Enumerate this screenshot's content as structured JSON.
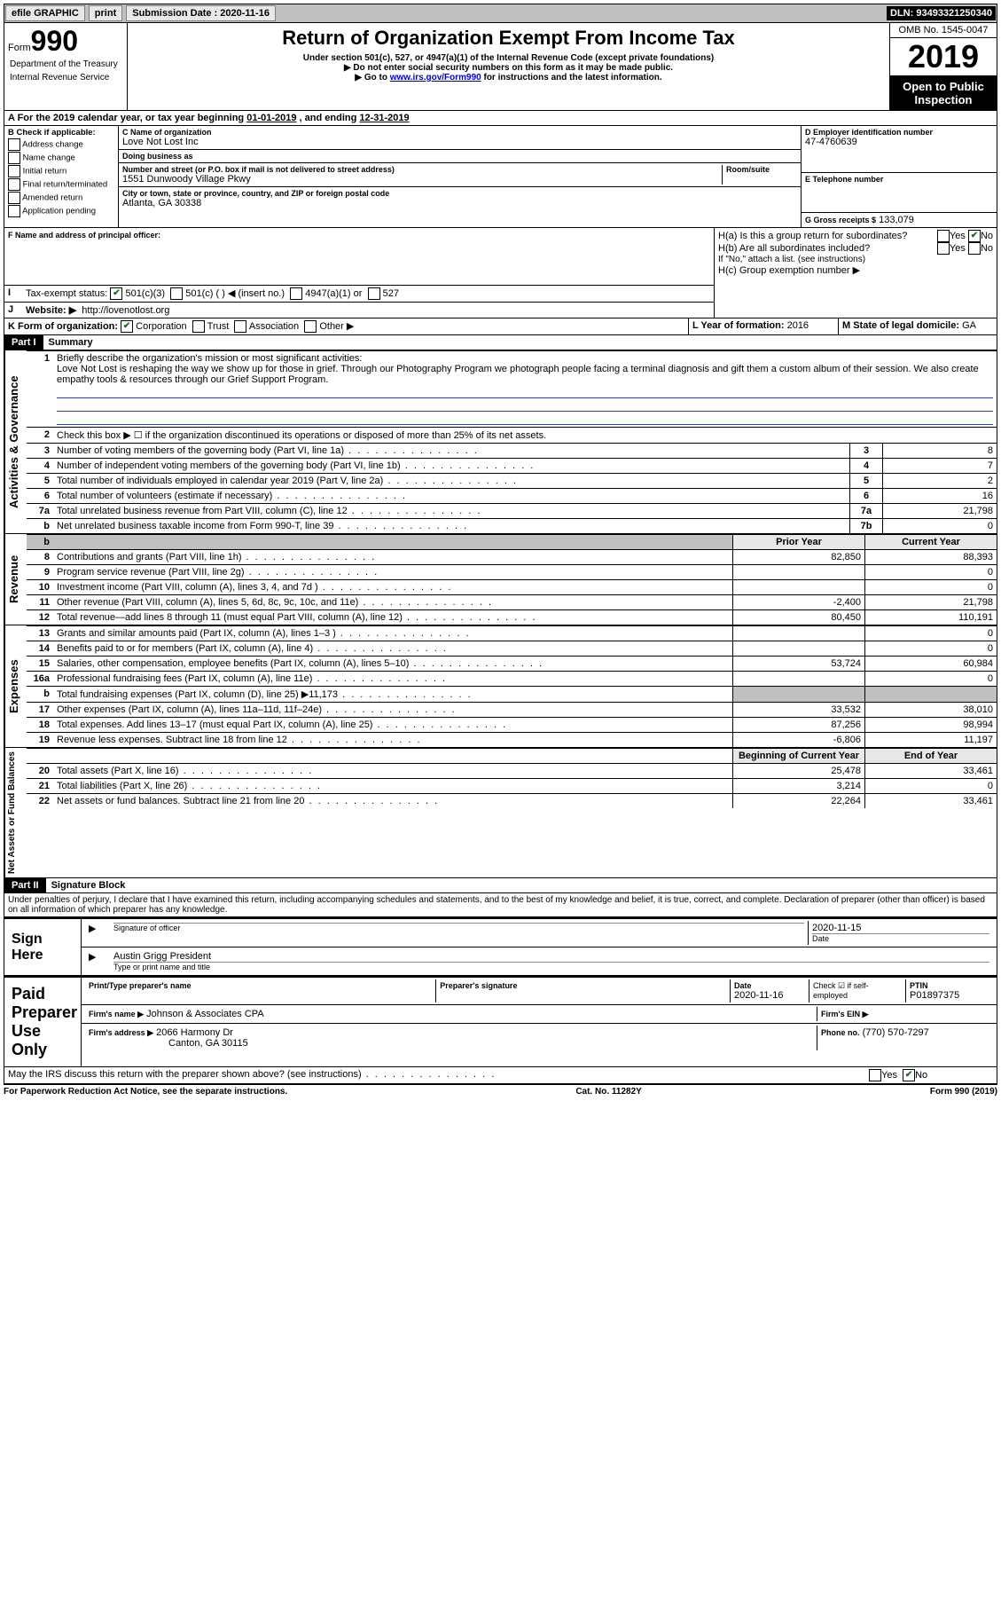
{
  "topbar": {
    "efile": "efile GRAPHIC",
    "print": "print",
    "subdate_label": "Submission Date : ",
    "subdate": "2020-11-16",
    "dln": "DLN: 93493321250340"
  },
  "header": {
    "form_prefix": "Form",
    "form_number": "990",
    "title": "Return of Organization Exempt From Income Tax",
    "subtitle1": "Under section 501(c), 527, or 4947(a)(1) of the Internal Revenue Code (except private foundations)",
    "subtitle2": "▶ Do not enter social security numbers on this form as it may be made public.",
    "subtitle3_pre": "▶ Go to ",
    "subtitle3_link": "www.irs.gov/Form990",
    "subtitle3_post": " for instructions and the latest information.",
    "omb": "OMB No. 1545-0047",
    "year": "2019",
    "open": "Open to Public Inspection",
    "dept1": "Department of the Treasury",
    "dept2": "Internal Revenue Service"
  },
  "A": {
    "text": "A For the 2019 calendar year, or tax year beginning ",
    "begin": "01-01-2019",
    "mid": " , and ending ",
    "end": "12-31-2019"
  },
  "B": {
    "label": "B Check if applicable:",
    "items": [
      "Address change",
      "Name change",
      "Initial return",
      "Final return/terminated",
      "Amended return",
      "Application pending"
    ]
  },
  "C": {
    "name_label": "C Name of organization",
    "name": "Love Not Lost Inc",
    "dba_label": "Doing business as",
    "dba": "",
    "street_label": "Number and street (or P.O. box if mail is not delivered to street address)",
    "room_label": "Room/suite",
    "street": "1551 Dunwoody Village Pkwy",
    "city_label": "City or town, state or province, country, and ZIP or foreign postal code",
    "city": "Atlanta, GA  30338"
  },
  "D": {
    "label": "D Employer identification number",
    "val": "47-4760639"
  },
  "E": {
    "label": "E Telephone number",
    "val": ""
  },
  "G": {
    "label": "G Gross receipts $",
    "val": "133,079"
  },
  "F": {
    "label": "F  Name and address of principal officer:",
    "val": ""
  },
  "H": {
    "a": "H(a)  Is this a group return for subordinates?",
    "b": "H(b)  Are all subordinates included?",
    "b_note": "If \"No,\" attach a list. (see instructions)",
    "c": "H(c)  Group exemption number ▶",
    "yes": "Yes",
    "no": "No"
  },
  "I": {
    "label": "I",
    "text": "Tax-exempt status:",
    "opts": [
      "501(c)(3)",
      "501(c) (   ) ◀ (insert no.)",
      "4947(a)(1) or",
      "527"
    ]
  },
  "J": {
    "label": "J",
    "text": "Website: ▶",
    "val": "http://lovenotlost.org"
  },
  "K": {
    "label": "K Form of organization:",
    "opts": [
      "Corporation",
      "Trust",
      "Association",
      "Other ▶"
    ]
  },
  "L": {
    "label": "L Year of formation:",
    "val": "2016"
  },
  "M": {
    "label": "M State of legal domicile:",
    "val": "GA"
  },
  "partI": {
    "header": "Part I",
    "title": "Summary",
    "line1_label": "Briefly describe the organization's mission or most significant activities:",
    "line1_text": "Love Not Lost is reshaping the way we show up for those in grief. Through our Photography Program we photograph people facing a terminal diagnosis and gift them a custom album of their session. We also create empathy tools & resources through our Grief Support Program.",
    "line2": "Check this box ▶ ☐  if the organization discontinued its operations or disposed of more than 25% of its net assets.",
    "gov_label": "Activities & Governance",
    "rev_label": "Revenue",
    "exp_label": "Expenses",
    "net_label": "Net Assets or Fund Balances",
    "prior": "Prior Year",
    "current": "Current Year",
    "boy": "Beginning of Current Year",
    "eoy": "End of Year",
    "lines_gov": [
      {
        "n": "3",
        "t": "Number of voting members of the governing body (Part VI, line 1a)",
        "b": "3",
        "v": "8"
      },
      {
        "n": "4",
        "t": "Number of independent voting members of the governing body (Part VI, line 1b)",
        "b": "4",
        "v": "7"
      },
      {
        "n": "5",
        "t": "Total number of individuals employed in calendar year 2019 (Part V, line 2a)",
        "b": "5",
        "v": "2"
      },
      {
        "n": "6",
        "t": "Total number of volunteers (estimate if necessary)",
        "b": "6",
        "v": "16"
      },
      {
        "n": "7a",
        "t": "Total unrelated business revenue from Part VIII, column (C), line 12",
        "b": "7a",
        "v": "21,798"
      },
      {
        "n": "b",
        "t": "Net unrelated business taxable income from Form 990-T, line 39",
        "b": "7b",
        "v": "0"
      }
    ],
    "lines_rev": [
      {
        "n": "8",
        "t": "Contributions and grants (Part VIII, line 1h)",
        "p": "82,850",
        "c": "88,393"
      },
      {
        "n": "9",
        "t": "Program service revenue (Part VIII, line 2g)",
        "p": "",
        "c": "0"
      },
      {
        "n": "10",
        "t": "Investment income (Part VIII, column (A), lines 3, 4, and 7d )",
        "p": "",
        "c": "0"
      },
      {
        "n": "11",
        "t": "Other revenue (Part VIII, column (A), lines 5, 6d, 8c, 9c, 10c, and 11e)",
        "p": "-2,400",
        "c": "21,798"
      },
      {
        "n": "12",
        "t": "Total revenue—add lines 8 through 11 (must equal Part VIII, column (A), line 12)",
        "p": "80,450",
        "c": "110,191"
      }
    ],
    "lines_exp": [
      {
        "n": "13",
        "t": "Grants and similar amounts paid (Part IX, column (A), lines 1–3 )",
        "p": "",
        "c": "0"
      },
      {
        "n": "14",
        "t": "Benefits paid to or for members (Part IX, column (A), line 4)",
        "p": "",
        "c": "0"
      },
      {
        "n": "15",
        "t": "Salaries, other compensation, employee benefits (Part IX, column (A), lines 5–10)",
        "p": "53,724",
        "c": "60,984"
      },
      {
        "n": "16a",
        "t": "Professional fundraising fees (Part IX, column (A), line 11e)",
        "p": "",
        "c": "0"
      },
      {
        "n": "b",
        "t": "Total fundraising expenses (Part IX, column (D), line 25) ▶11,173",
        "p": "GREY",
        "c": "GREY"
      },
      {
        "n": "17",
        "t": "Other expenses (Part IX, column (A), lines 11a–11d, 11f–24e)",
        "p": "33,532",
        "c": "38,010"
      },
      {
        "n": "18",
        "t": "Total expenses. Add lines 13–17 (must equal Part IX, column (A), line 25)",
        "p": "87,256",
        "c": "98,994"
      },
      {
        "n": "19",
        "t": "Revenue less expenses. Subtract line 18 from line 12",
        "p": "-6,806",
        "c": "11,197"
      }
    ],
    "lines_net": [
      {
        "n": "20",
        "t": "Total assets (Part X, line 16)",
        "p": "25,478",
        "c": "33,461"
      },
      {
        "n": "21",
        "t": "Total liabilities (Part X, line 26)",
        "p": "3,214",
        "c": "0"
      },
      {
        "n": "22",
        "t": "Net assets or fund balances. Subtract line 21 from line 20",
        "p": "22,264",
        "c": "33,461"
      }
    ]
  },
  "partII": {
    "header": "Part II",
    "title": "Signature Block",
    "decl": "Under penalties of perjury, I declare that I have examined this return, including accompanying schedules and statements, and to the best of my knowledge and belief, it is true, correct, and complete. Declaration of preparer (other than officer) is based on all information of which preparer has any knowledge."
  },
  "sign": {
    "here": "Sign Here",
    "sig_officer": "Signature of officer",
    "date_lbl": "Date",
    "date": "2020-11-15",
    "name": "Austin Grigg President",
    "name_lbl": "Type or print name and title"
  },
  "paid": {
    "label": "Paid Preparer Use Only",
    "pn_lbl": "Print/Type preparer's name",
    "pn": "",
    "ps_lbl": "Preparer's signature",
    "pd_lbl": "Date",
    "pd": "2020-11-16",
    "ck_lbl": "Check ☑ if self-employed",
    "ptin_lbl": "PTIN",
    "ptin": "P01897375",
    "firm_lbl": "Firm's name  ▶",
    "firm": "Johnson & Associates CPA",
    "ein_lbl": "Firm's EIN ▶",
    "addr_lbl": "Firm's address ▶",
    "addr1": "2066 Harmony Dr",
    "addr2": "Canton, GA  30115",
    "phone_lbl": "Phone no.",
    "phone": "(770) 570-7297"
  },
  "discuss": {
    "text": "May the IRS discuss this return with the preparer shown above? (see instructions)",
    "yes": "Yes",
    "no": "No"
  },
  "footer": {
    "left": "For Paperwork Reduction Act Notice, see the separate instructions.",
    "mid": "Cat. No. 11282Y",
    "right": "Form 990 (2019)"
  }
}
